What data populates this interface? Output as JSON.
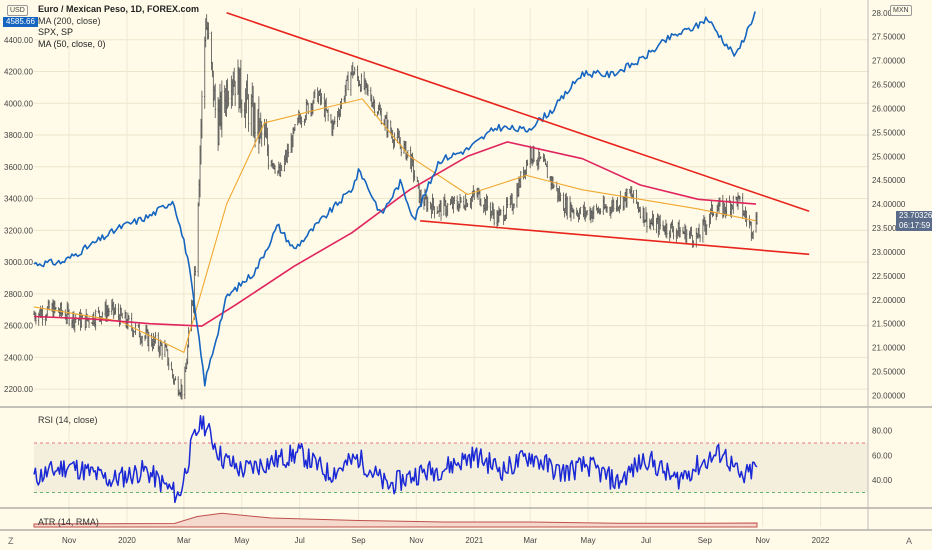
{
  "legend": {
    "title": "Euro / Mexican Peso, 1D, FOREX.com",
    "ma200": "MA (200, close)",
    "spx": "SPX, SP",
    "ma50": "MA (50, close, 0)"
  },
  "units": {
    "left": "USD",
    "right": "MXN"
  },
  "current": {
    "spx": "4585.66",
    "eurmxn": "23.70326",
    "countdown": "06:17:59"
  },
  "rsi_label": "RSI (14, close)",
  "atr_label": "ATR (14, RMA)",
  "footer": {
    "left_btn": "Z",
    "right_btn": "A"
  },
  "colors": {
    "background": "#fffbe8",
    "candles": "#4d4d4d",
    "spx_line": "#1565c0",
    "ma200": "#e0245e",
    "ma50": "#f0a830",
    "trendline": "#e8241c",
    "rsi": "#1a28d6",
    "atr": "#c0504d"
  },
  "chart_data": [
    {
      "type": "line",
      "series": [
        {
          "name": "SPX, SP",
          "x": [
            "2019-09-25",
            "2019-10-25",
            "2019-11-25",
            "2019-12-25",
            "2020-01-25",
            "2020-02-19",
            "2020-03-05",
            "2020-03-23",
            "2020-04-15",
            "2020-05-15",
            "2020-06-08",
            "2020-06-25",
            "2020-07-25",
            "2020-08-25",
            "2020-09-02",
            "2020-09-25",
            "2020-10-15",
            "2020-10-30",
            "2020-11-25",
            "2020-12-25",
            "2021-01-25",
            "2021-02-25",
            "2021-03-25",
            "2021-04-25",
            "2021-05-25",
            "2021-06-25",
            "2021-07-25",
            "2021-08-25",
            "2021-09-03",
            "2021-09-25",
            "2021-10-04",
            "2021-10-25"
          ],
          "values": [
            2990,
            3000,
            3110,
            3220,
            3290,
            3390,
            3030,
            2240,
            2780,
            2940,
            3230,
            3080,
            3270,
            3460,
            3580,
            3300,
            3500,
            3270,
            3640,
            3710,
            3850,
            3830,
            3960,
            4190,
            4180,
            4270,
            4410,
            4490,
            4540,
            4360,
            4300,
            4585.66
          ]
        },
        {
          "name": "MA (200, close)",
          "x": [
            "2019-09-25",
            "2019-11-25",
            "2020-01-25",
            "2020-03-20",
            "2020-04-25",
            "2020-06-25",
            "2020-08-25",
            "2020-10-25",
            "2020-12-25",
            "2021-02-05",
            "2021-04-25",
            "2021-06-25",
            "2021-08-25",
            "2021-10-25"
          ],
          "values": [
            21.65,
            21.6,
            21.5,
            21.45,
            21.9,
            22.7,
            23.4,
            24.3,
            25.0,
            25.3,
            24.95,
            24.4,
            24.1,
            24.0
          ]
        },
        {
          "name": "MA (50, close, 0)",
          "x": [
            "2019-09-25",
            "2019-12-25",
            "2020-03-01",
            "2020-04-15",
            "2020-05-25",
            "2020-07-25",
            "2020-09-05",
            "2020-10-25",
            "2020-12-25",
            "2021-02-25",
            "2021-04-25",
            "2021-06-25",
            "2021-08-25",
            "2021-10-25"
          ],
          "values": [
            21.85,
            21.55,
            20.9,
            24.0,
            25.7,
            26.0,
            26.2,
            25.0,
            24.2,
            24.6,
            24.3,
            24.1,
            23.9,
            23.65
          ]
        }
      ],
      "title": "Euro / Mexican Peso, 1D, FOREX.com",
      "y_left_ticks": [
        2200,
        2400,
        2600,
        2800,
        3000,
        3200,
        3400,
        3600,
        3800,
        4000,
        4200,
        4400
      ],
      "y_right_ticks": [
        20.0,
        20.5,
        21.0,
        21.5,
        22.0,
        22.5,
        23.0,
        23.5,
        24.0,
        24.5,
        25.0,
        25.5,
        26.0,
        26.5,
        27.0,
        27.5,
        28.0
      ],
      "y_left_ticks_text": [
        "2200.00",
        "2400.00",
        "2600.00",
        "2800.00",
        "3000.00",
        "3200.00",
        "3400.00",
        "3600.00",
        "3800.00",
        "4000.00",
        "4200.00",
        "4400.00"
      ],
      "y_right_ticks_text": [
        "20.00000",
        "20.50000",
        "21.00000",
        "21.50000",
        "22.00000",
        "22.50000",
        "23.00000",
        "23.50000",
        "24.00000",
        "24.50000",
        "25.00000",
        "25.50000",
        "26.00000",
        "26.50000",
        "27.00000",
        "27.50000",
        "28.00000"
      ],
      "ylim_left": [
        2100,
        4600
      ],
      "ylim_right": [
        19.8,
        28.1
      ],
      "xlim": [
        "2019-09-25",
        "2022-02-20"
      ],
      "x_ticks": [
        {
          "date": "2019-11-01",
          "label": "Nov"
        },
        {
          "date": "2020-01-01",
          "label": "2020"
        },
        {
          "date": "2020-03-01",
          "label": "Mar"
        },
        {
          "date": "2020-05-01",
          "label": "May"
        },
        {
          "date": "2020-07-01",
          "label": "Jul"
        },
        {
          "date": "2020-09-01",
          "label": "Sep"
        },
        {
          "date": "2020-11-01",
          "label": "Nov"
        },
        {
          "date": "2021-01-01",
          "label": "2021"
        },
        {
          "date": "2021-03-01",
          "label": "Mar"
        },
        {
          "date": "2021-05-01",
          "label": "May"
        },
        {
          "date": "2021-07-01",
          "label": "Jul"
        },
        {
          "date": "2021-09-01",
          "label": "Sep"
        },
        {
          "date": "2021-11-01",
          "label": "Nov"
        },
        {
          "date": "2022-01-01",
          "label": "2022"
        }
      ],
      "price_path": {
        "name": "EUR/MXN",
        "x": [
          "2019-09-25",
          "2019-10-15",
          "2019-11-15",
          "2019-12-15",
          "2020-01-15",
          "2020-02-10",
          "2020-02-20",
          "2020-03-01",
          "2020-03-12",
          "2020-03-24",
          "2020-04-05",
          "2020-04-20",
          "2020-05-01",
          "2020-05-20",
          "2020-06-10",
          "2020-07-01",
          "2020-07-20",
          "2020-08-05",
          "2020-08-25",
          "2020-09-15",
          "2020-10-05",
          "2020-10-25",
          "2020-11-05",
          "2020-11-25",
          "2020-12-15",
          "2021-01-05",
          "2021-01-25",
          "2021-02-10",
          "2021-03-01",
          "2021-03-15",
          "2021-04-05",
          "2021-04-25",
          "2021-05-20",
          "2021-06-15",
          "2021-07-05",
          "2021-07-25",
          "2021-08-10",
          "2021-08-25",
          "2021-09-10",
          "2021-09-20",
          "2021-10-05",
          "2021-10-20",
          "2021-10-26"
        ],
        "values": [
          21.7,
          21.8,
          21.55,
          21.8,
          21.3,
          20.95,
          20.3,
          20.1,
          22.5,
          27.9,
          25.6,
          26.8,
          26.3,
          25.5,
          24.6,
          25.8,
          26.3,
          25.6,
          26.8,
          26.2,
          25.5,
          25.0,
          24.1,
          23.9,
          24.0,
          24.2,
          23.7,
          24.0,
          25.1,
          24.8,
          24.0,
          23.8,
          23.9,
          24.2,
          23.6,
          23.5,
          23.4,
          23.3,
          23.9,
          23.9,
          24.1,
          23.5,
          23.70326
        ]
      },
      "trendlines": [
        {
          "from": {
            "x": "2020-04-15",
            "y": 28.0
          },
          "to": {
            "x": "2021-12-20",
            "y": 23.85
          }
        },
        {
          "from": {
            "x": "2020-11-05",
            "y": 23.65
          },
          "to": {
            "x": "2021-12-20",
            "y": 22.95
          }
        }
      ]
    },
    {
      "type": "line",
      "title": "RSI (14, close)",
      "ylim": [
        20,
        95
      ],
      "y_ticks": [
        40,
        60,
        80
      ],
      "y_ticks_text": [
        "40.00",
        "60.00",
        "80.00"
      ],
      "bands": [
        30,
        70
      ],
      "x": [
        "2019-09-25",
        "2019-11-01",
        "2019-12-15",
        "2020-01-20",
        "2020-02-25",
        "2020-03-10",
        "2020-03-20",
        "2020-04-10",
        "2020-05-01",
        "2020-06-01",
        "2020-07-01",
        "2020-08-01",
        "2020-09-01",
        "2020-10-01",
        "2020-11-01",
        "2020-12-01",
        "2021-01-01",
        "2021-02-01",
        "2021-03-01",
        "2021-04-01",
        "2021-05-01",
        "2021-06-01",
        "2021-07-01",
        "2021-08-01",
        "2021-09-01",
        "2021-09-20",
        "2021-10-10",
        "2021-10-26"
      ],
      "values": [
        42,
        52,
        40,
        48,
        27,
        70,
        89,
        58,
        48,
        55,
        62,
        45,
        58,
        35,
        45,
        50,
        60,
        48,
        60,
        46,
        52,
        38,
        58,
        40,
        55,
        63,
        40,
        52
      ]
    },
    {
      "type": "area",
      "title": "ATR (14, RMA)",
      "x": [
        "2019-09-25",
        "2020-02-20",
        "2020-03-15",
        "2020-04-10",
        "2020-06-01",
        "2020-09-01",
        "2020-12-01",
        "2021-03-01",
        "2021-06-01",
        "2021-09-01",
        "2021-10-26"
      ],
      "values": [
        0.12,
        0.14,
        0.42,
        0.55,
        0.36,
        0.26,
        0.2,
        0.2,
        0.15,
        0.15,
        0.16
      ]
    }
  ]
}
